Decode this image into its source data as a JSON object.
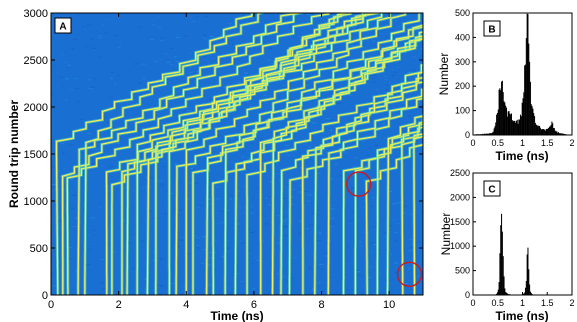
{
  "chart_data": [
    {
      "panel": "A",
      "type": "heatmap",
      "xlabel": "Time (ns)",
      "ylabel": "Round trip number",
      "xlim": [
        0,
        11
      ],
      "ylim": [
        0,
        3000
      ],
      "xticks": [
        "0",
        "2",
        "4",
        "6",
        "8",
        "10"
      ],
      "yticks": [
        "0",
        "500",
        "1000",
        "1500",
        "2000",
        "2500",
        "3000"
      ],
      "colormap": [
        "#1560c8",
        "#1f8ae0",
        "#f2ef55"
      ],
      "marked_circles": [
        {
          "x": 9.1,
          "y": 1180
        },
        {
          "x": 10.6,
          "y": 220
        }
      ],
      "vertical_traces_x": [
        0.2,
        0.35,
        0.5,
        0.8,
        1.0,
        1.65,
        1.8,
        2.1,
        2.25,
        2.55,
        2.85,
        3.1,
        3.5,
        3.7,
        4.0,
        4.2,
        4.6,
        4.8,
        5.15,
        5.45,
        5.8,
        6.2,
        6.55,
        6.8,
        7.05,
        7.45,
        7.8,
        8.2,
        8.65,
        9.0,
        9.35,
        9.65,
        9.95,
        10.4,
        10.75
      ]
    },
    {
      "panel": "B",
      "type": "bar",
      "xlabel": "Time (ns)",
      "ylabel": "Number",
      "xlim": [
        0,
        2
      ],
      "ylim": [
        0,
        500
      ],
      "xticks": [
        "0",
        "0.5",
        "1",
        "1.5",
        "2"
      ],
      "yticks": [
        "0",
        "100",
        "200",
        "300",
        "400",
        "500"
      ],
      "x": [
        0.0,
        0.1,
        0.2,
        0.3,
        0.4,
        0.45,
        0.5,
        0.55,
        0.58,
        0.6,
        0.63,
        0.66,
        0.7,
        0.75,
        0.8,
        0.85,
        0.9,
        0.95,
        1.0,
        1.03,
        1.06,
        1.08,
        1.1,
        1.13,
        1.16,
        1.2,
        1.25,
        1.3,
        1.35,
        1.4,
        1.45,
        1.5,
        1.55,
        1.6,
        1.65,
        1.7,
        1.75,
        1.8,
        1.85,
        1.9,
        2.0
      ],
      "values": [
        2,
        3,
        4,
        6,
        10,
        40,
        110,
        200,
        260,
        220,
        150,
        110,
        90,
        80,
        70,
        60,
        55,
        60,
        120,
        220,
        350,
        460,
        480,
        320,
        180,
        100,
        60,
        40,
        30,
        25,
        20,
        25,
        30,
        50,
        20,
        12,
        8,
        6,
        4,
        2,
        1
      ]
    },
    {
      "panel": "C",
      "type": "bar",
      "xlabel": "Time (ns)",
      "ylabel": "Number",
      "xlim": [
        0,
        2
      ],
      "ylim": [
        0,
        2500
      ],
      "xticks": [
        "0",
        "0.5",
        "1",
        "1.5",
        "2"
      ],
      "yticks": [
        "0",
        "500",
        "1000",
        "1500",
        "2000",
        "2500"
      ],
      "x": [
        0.0,
        0.3,
        0.45,
        0.5,
        0.53,
        0.55,
        0.57,
        0.59,
        0.61,
        0.63,
        0.65,
        0.7,
        0.8,
        0.9,
        1.0,
        1.05,
        1.08,
        1.1,
        1.12,
        1.14,
        1.16,
        1.2,
        1.3,
        1.5,
        2.0
      ],
      "values": [
        0,
        0,
        5,
        40,
        300,
        1200,
        2200,
        1600,
        700,
        250,
        80,
        20,
        5,
        5,
        10,
        60,
        400,
        1000,
        700,
        250,
        60,
        10,
        2,
        0,
        0
      ]
    }
  ],
  "panel_tags": {
    "a": "A",
    "b": "B",
    "c": "C"
  },
  "labels": {
    "a_x": "Time (ns)",
    "a_y": "Round trip number",
    "b_x": "Time (ns)",
    "b_y": "Number",
    "c_x": "Time (ns)",
    "c_y": "Number"
  }
}
